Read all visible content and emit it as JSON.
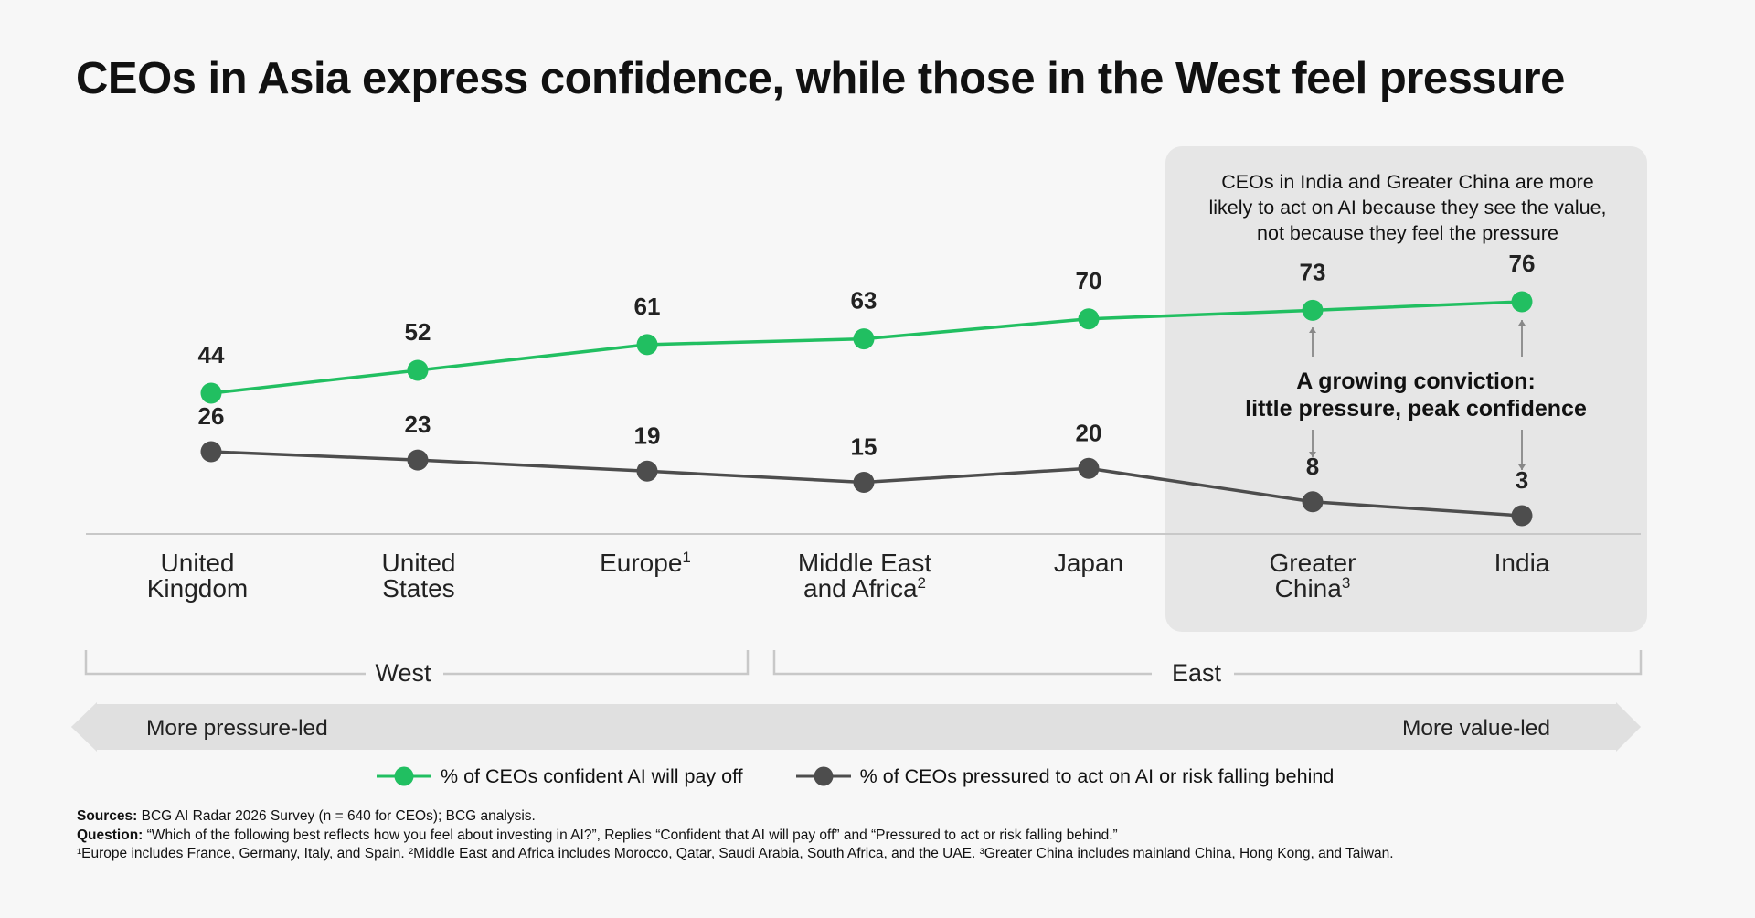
{
  "title": "CEOs in Asia express confidence, while those in the West feel pressure",
  "colors": {
    "confident": "#21BF61",
    "pressured": "#4D4D4D",
    "highlight_panel": "#e6e6e6",
    "band": "#e0e0e0"
  },
  "chart_data": {
    "type": "line",
    "title": "CEOs in Asia express confidence, while those in the West feel pressure",
    "categories": [
      "United Kingdom",
      "United States",
      "Europe",
      "Middle East and Africa",
      "Japan",
      "Greater China",
      "India"
    ],
    "category_display": [
      {
        "lines": [
          "United",
          "Kingdom"
        ],
        "sup": ""
      },
      {
        "lines": [
          "United",
          "States"
        ],
        "sup": ""
      },
      {
        "lines": [
          "Europe"
        ],
        "sup": "1"
      },
      {
        "lines": [
          "Middle East",
          "and Africa"
        ],
        "sup": "2"
      },
      {
        "lines": [
          "Japan"
        ],
        "sup": ""
      },
      {
        "lines": [
          "Greater",
          "China"
        ],
        "sup": "3"
      },
      {
        "lines": [
          "India"
        ],
        "sup": ""
      }
    ],
    "series": [
      {
        "name": "% of CEOs confident AI will pay off",
        "values": [
          44,
          52,
          61,
          63,
          70,
          73,
          76
        ],
        "color": "#21BF61"
      },
      {
        "name": "% of CEOs pressured to act on AI or risk falling behind",
        "values": [
          26,
          23,
          19,
          15,
          20,
          8,
          3
        ],
        "color": "#4D4D4D"
      }
    ],
    "xlabel": "",
    "ylabel": "",
    "grid": false,
    "legend": "bottom"
  },
  "highlight": {
    "note_lines": [
      "CEOs in India and Greater China are more",
      "likely to act on AI because they see the value,",
      "not because they feel the pressure"
    ],
    "conviction_lines": [
      "A growing conviction:",
      "little pressure, peak confidence"
    ]
  },
  "regions": {
    "west": "West",
    "east": "East"
  },
  "direction": {
    "left": "More pressure-led",
    "right": "More value-led"
  },
  "legend": {
    "confident": "% of CEOs confident AI will pay off",
    "pressured": "% of CEOs pressured to act on AI or risk falling behind"
  },
  "footer": {
    "sources_label": "Sources:",
    "sources_text": " BCG AI Radar 2026 Survey (n = 640 for CEOs); BCG analysis.",
    "question_label": "Question:",
    "question_text": " “Which of the following best reflects how you feel about investing in AI?”, Replies “Confident that AI will pay off” and “Pressured to act or risk falling behind.”",
    "notes": "¹Europe includes France, Germany, Italy, and Spain. ²Middle East and Africa includes Morocco, Qatar, Saudi Arabia, South Africa, and the UAE. ³Greater China includes mainland China, Hong Kong, and Taiwan."
  }
}
